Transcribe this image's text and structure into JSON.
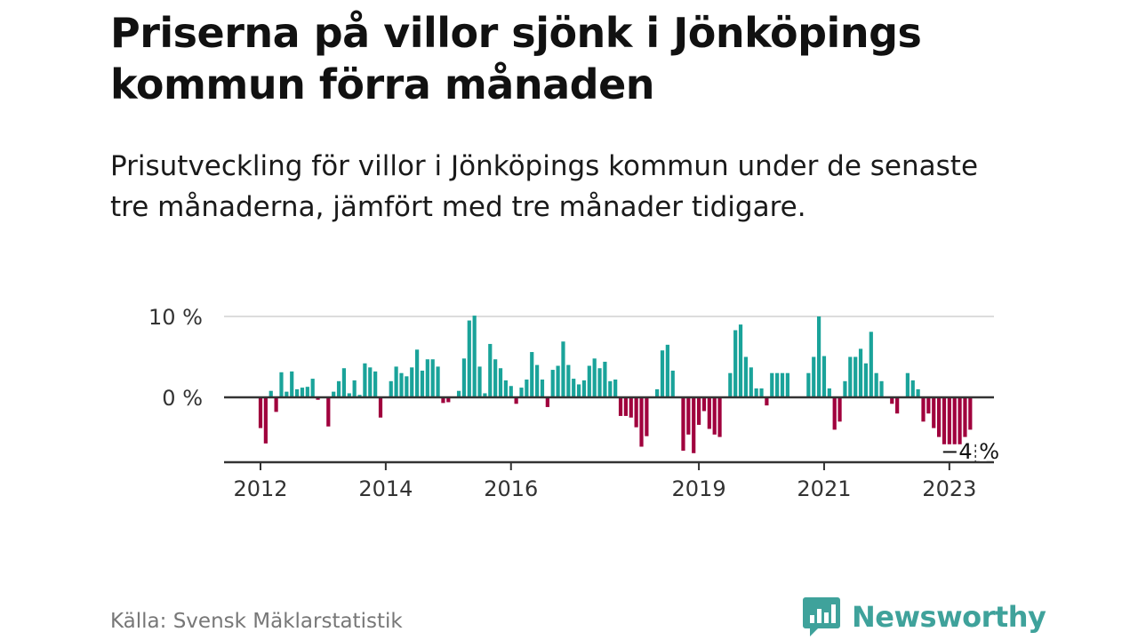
{
  "title": "Priserna på villor sjönk i Jönköpings kommun förra månaden",
  "subtitle": "Prisutveckling för villor i Jönköpings kommun under de senaste tre månaderna, jämfört med tre månader tidigare.",
  "source": "Källa: Svensk Mäklarstatistik",
  "brand": "Newsworthy",
  "colors": {
    "positive": "#1aa39a",
    "negative": "#a0003d",
    "brand": "#3fa29b"
  },
  "chart_data": {
    "type": "bar",
    "title": "Prisutveckling för villor i Jönköpings kommun",
    "xlabel": "",
    "ylabel": "",
    "unit": "%",
    "start": [
      2012,
      1
    ],
    "ylim": [
      -8,
      10
    ],
    "yticks": [
      {
        "value": 0,
        "label": "0 %"
      },
      {
        "value": 10,
        "label": "10 %"
      }
    ],
    "xticks": [
      {
        "year": 2012,
        "label": "2012"
      },
      {
        "year": 2014,
        "label": "2014"
      },
      {
        "year": 2016,
        "label": "2016"
      },
      {
        "year": 2019,
        "label": "2019"
      },
      {
        "year": 2021,
        "label": "2021"
      },
      {
        "year": 2023,
        "label": "2023"
      }
    ],
    "annotation": {
      "label": "−4 %",
      "value": -4
    },
    "values": [
      -3.8,
      -5.7,
      0.8,
      -1.8,
      3.1,
      0.7,
      3.2,
      1.0,
      1.2,
      1.3,
      2.3,
      -0.3,
      null,
      -3.6,
      0.7,
      2.0,
      3.6,
      0.5,
      2.1,
      0.3,
      4.2,
      3.7,
      3.2,
      -2.5,
      null,
      2.0,
      3.8,
      3.0,
      2.6,
      3.7,
      5.9,
      3.3,
      4.7,
      4.7,
      3.8,
      -0.7,
      -0.6,
      null,
      0.8,
      4.8,
      9.5,
      10.1,
      3.8,
      0.5,
      6.6,
      4.7,
      3.6,
      2.1,
      1.4,
      -0.8,
      1.2,
      2.2,
      5.6,
      4.0,
      2.2,
      -1.2,
      3.4,
      3.9,
      6.9,
      4.0,
      2.3,
      1.6,
      2.1,
      3.9,
      4.8,
      3.6,
      4.4,
      2.0,
      2.2,
      -2.3,
      -2.3,
      -2.5,
      -3.7,
      -6.1,
      -4.8,
      null,
      1.0,
      5.8,
      6.5,
      3.3,
      null,
      -6.6,
      -4.6,
      -6.9,
      -3.4,
      -1.7,
      -3.9,
      -4.6,
      -4.9,
      null,
      3.0,
      8.3,
      9.0,
      5.0,
      3.7,
      1.1,
      1.1,
      -1.0,
      3.0,
      3.0,
      3.0,
      3.0,
      null,
      null,
      null,
      3.0,
      5.0,
      10.0,
      5.1,
      1.1,
      -4.0,
      -3.0,
      2.0,
      5.0,
      5.0,
      6.0,
      4.2,
      8.1,
      3.0,
      2.0,
      null,
      -0.8,
      -2.0,
      null,
      3.0,
      2.1,
      1.0,
      -3.0,
      -2.0,
      -3.8,
      -4.9,
      -5.8,
      -5.8,
      -5.8,
      -5.8,
      -4.9,
      -4.0,
      null
    ]
  }
}
